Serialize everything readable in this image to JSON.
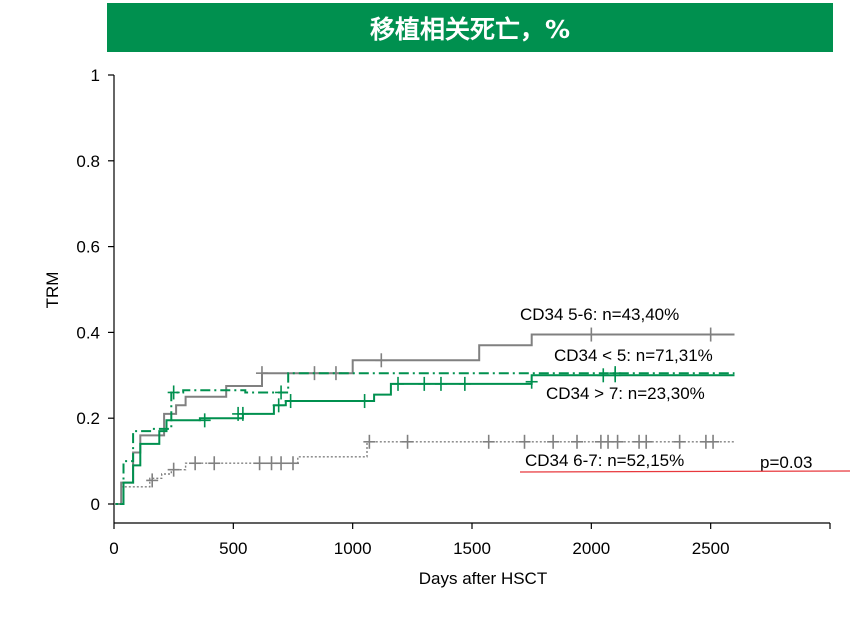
{
  "colors": {
    "green": "#00904F",
    "gray": "#808080",
    "red": "#E8383D"
  },
  "chart_data": {
    "type": "line",
    "title": "移植相关死亡，%",
    "xlabel": "Days after HSCT",
    "ylabel": "TRM",
    "xlim": [
      0,
      3000
    ],
    "ylim": [
      0,
      1
    ],
    "xticks": [
      0,
      500,
      1000,
      1500,
      2000,
      2500
    ],
    "xtick_labels": [
      "0",
      "500",
      "1000",
      "1500",
      "2000",
      "2500"
    ],
    "yticks": [
      0,
      0.2,
      0.4,
      0.6,
      0.8,
      1
    ],
    "ytick_labels": [
      "0",
      "0.2",
      "0.4",
      "0.6",
      "0.8",
      "1"
    ],
    "grid": false,
    "series": [
      {
        "name": "CD34 5-6: n=43,40%",
        "color": "#808080",
        "style": "solid",
        "points": [
          [
            0,
            0
          ],
          [
            30,
            0
          ],
          [
            30,
            0.05
          ],
          [
            80,
            0.05
          ],
          [
            80,
            0.12
          ],
          [
            110,
            0.12
          ],
          [
            110,
            0.16
          ],
          [
            210,
            0.16
          ],
          [
            210,
            0.21
          ],
          [
            260,
            0.21
          ],
          [
            260,
            0.23
          ],
          [
            300,
            0.23
          ],
          [
            300,
            0.25
          ],
          [
            470,
            0.25
          ],
          [
            470,
            0.275
          ],
          [
            620,
            0.275
          ],
          [
            620,
            0.305
          ],
          [
            1000,
            0.305
          ],
          [
            1000,
            0.335
          ],
          [
            1530,
            0.335
          ],
          [
            1530,
            0.37
          ],
          [
            1750,
            0.37
          ],
          [
            1750,
            0.395
          ],
          [
            2600,
            0.395
          ]
        ],
        "censored": [
          [
            620,
            0.305
          ],
          [
            840,
            0.305
          ],
          [
            930,
            0.305
          ],
          [
            1120,
            0.335
          ],
          [
            2000,
            0.395
          ],
          [
            2500,
            0.395
          ]
        ]
      },
      {
        "name": "CD34 < 5: n=71,31%",
        "color": "#00904F",
        "style": "dashdot",
        "points": [
          [
            0,
            0
          ],
          [
            40,
            0
          ],
          [
            40,
            0.1
          ],
          [
            80,
            0.1
          ],
          [
            80,
            0.17
          ],
          [
            160,
            0.17
          ],
          [
            160,
            0.175
          ],
          [
            240,
            0.175
          ],
          [
            240,
            0.26
          ],
          [
            290,
            0.26
          ],
          [
            290,
            0.265
          ],
          [
            550,
            0.265
          ],
          [
            550,
            0.26
          ],
          [
            730,
            0.26
          ],
          [
            730,
            0.305
          ],
          [
            2600,
            0.305
          ]
        ],
        "censored": [
          [
            250,
            0.26
          ],
          [
            700,
            0.26
          ],
          [
            2100,
            0.305
          ]
        ]
      },
      {
        "name": "CD34  > 7: n=23,30%",
        "color": "#00904F",
        "style": "solid",
        "points": [
          [
            0,
            0
          ],
          [
            40,
            0
          ],
          [
            40,
            0.05
          ],
          [
            80,
            0.05
          ],
          [
            80,
            0.09
          ],
          [
            110,
            0.09
          ],
          [
            110,
            0.14
          ],
          [
            190,
            0.14
          ],
          [
            190,
            0.17
          ],
          [
            220,
            0.17
          ],
          [
            220,
            0.195
          ],
          [
            360,
            0.195
          ],
          [
            360,
            0.2
          ],
          [
            540,
            0.2
          ],
          [
            540,
            0.21
          ],
          [
            670,
            0.21
          ],
          [
            670,
            0.23
          ],
          [
            720,
            0.23
          ],
          [
            720,
            0.24
          ],
          [
            1090,
            0.24
          ],
          [
            1090,
            0.255
          ],
          [
            1160,
            0.255
          ],
          [
            1160,
            0.28
          ],
          [
            1400,
            0.28
          ],
          [
            1400,
            0.28
          ],
          [
            1750,
            0.28
          ],
          [
            1750,
            0.3
          ],
          [
            2600,
            0.3
          ]
        ],
        "censored": [
          [
            380,
            0.195
          ],
          [
            520,
            0.21
          ],
          [
            540,
            0.21
          ],
          [
            690,
            0.23
          ],
          [
            740,
            0.24
          ],
          [
            1050,
            0.24
          ],
          [
            1190,
            0.28
          ],
          [
            1300,
            0.28
          ],
          [
            1370,
            0.28
          ],
          [
            1470,
            0.28
          ],
          [
            1750,
            0.285
          ],
          [
            2050,
            0.3
          ],
          [
            2100,
            0.3
          ]
        ]
      },
      {
        "name": "CD34 6-7: n=52,15%",
        "color": "#808080",
        "style": "dotted",
        "points": [
          [
            0,
            0
          ],
          [
            30,
            0
          ],
          [
            30,
            0.04
          ],
          [
            150,
            0.04
          ],
          [
            150,
            0.06
          ],
          [
            200,
            0.06
          ],
          [
            200,
            0.07
          ],
          [
            240,
            0.07
          ],
          [
            240,
            0.08
          ],
          [
            300,
            0.08
          ],
          [
            300,
            0.095
          ],
          [
            770,
            0.095
          ],
          [
            770,
            0.11
          ],
          [
            1060,
            0.11
          ],
          [
            1060,
            0.145
          ],
          [
            2600,
            0.145
          ]
        ],
        "censored": [
          [
            160,
            0.055
          ],
          [
            250,
            0.08
          ],
          [
            340,
            0.095
          ],
          [
            420,
            0.095
          ],
          [
            610,
            0.095
          ],
          [
            660,
            0.095
          ],
          [
            700,
            0.095
          ],
          [
            750,
            0.095
          ],
          [
            1070,
            0.145
          ],
          [
            1230,
            0.145
          ],
          [
            1570,
            0.145
          ],
          [
            1720,
            0.145
          ],
          [
            1840,
            0.145
          ],
          [
            1940,
            0.145
          ],
          [
            2040,
            0.145
          ],
          [
            2070,
            0.145
          ],
          [
            2110,
            0.145
          ],
          [
            2200,
            0.145
          ],
          [
            2230,
            0.145
          ],
          [
            2370,
            0.145
          ],
          [
            2480,
            0.145
          ],
          [
            2510,
            0.145
          ]
        ]
      }
    ],
    "annotations": [
      {
        "text": "p=0.03",
        "kind": "pvalue"
      }
    ]
  }
}
